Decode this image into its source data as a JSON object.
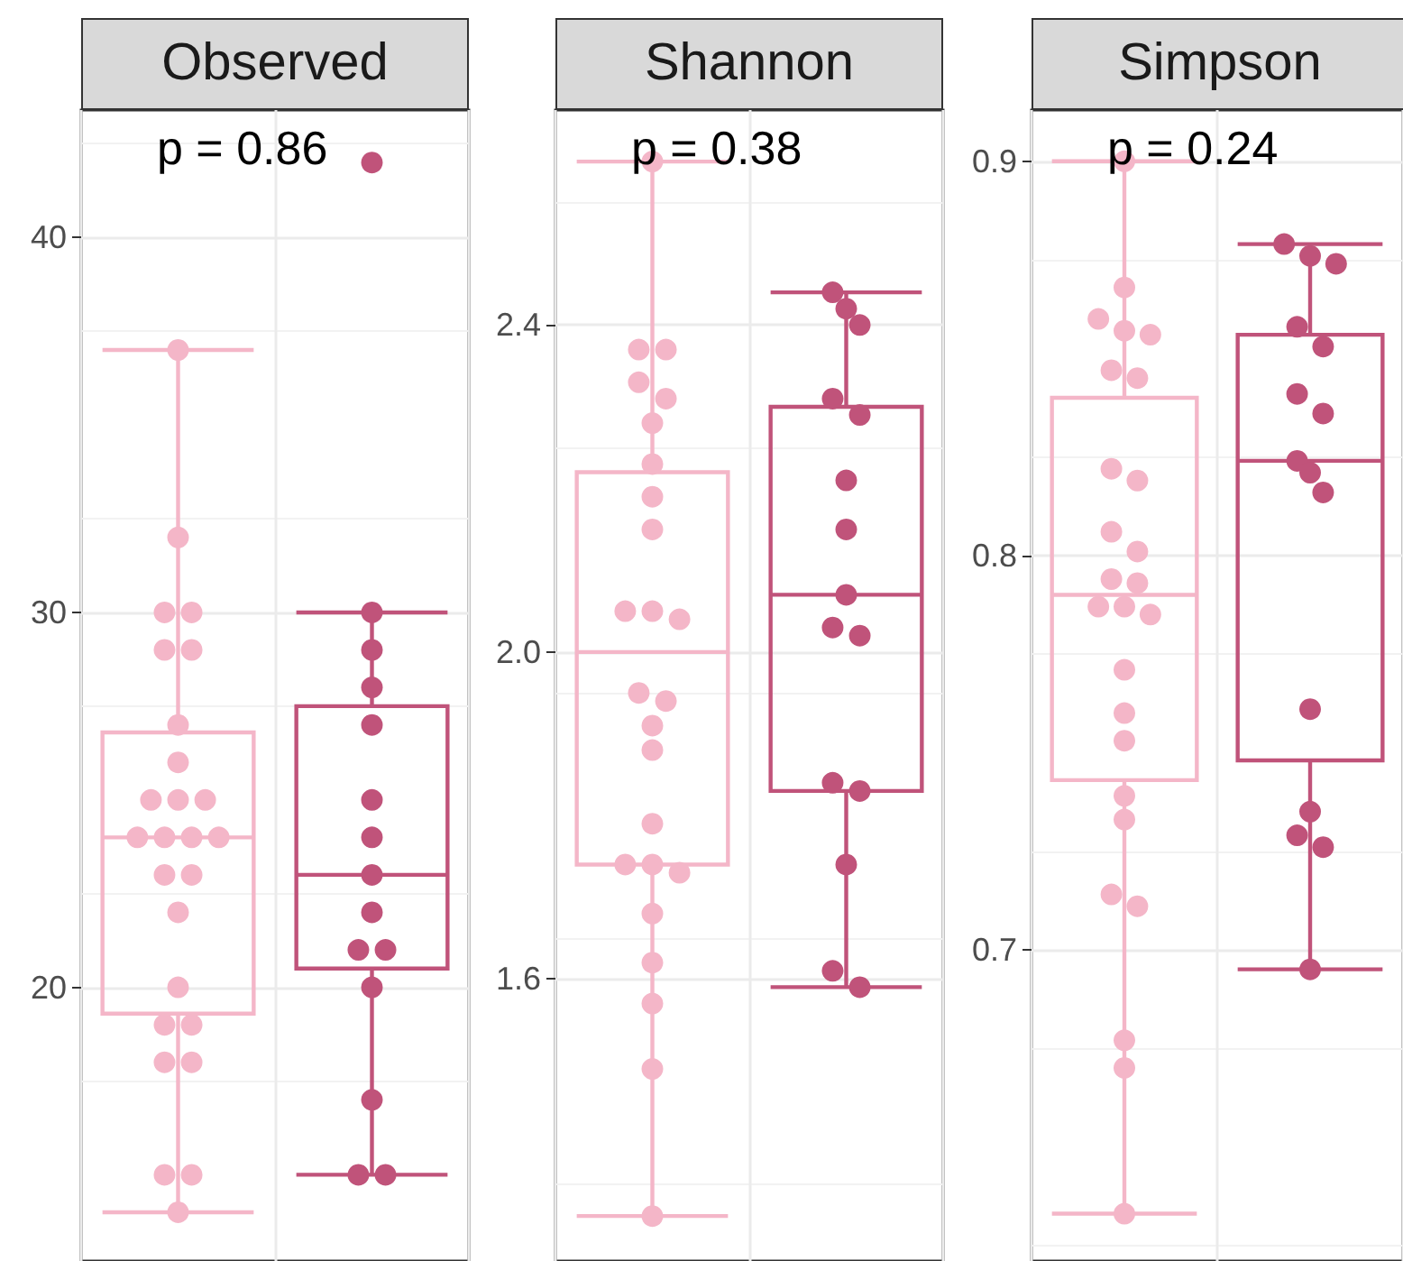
{
  "chart_data": [
    {
      "type": "box",
      "title": "Observed",
      "annotations": [
        "p = 0.86"
      ],
      "categories": [
        null,
        null
      ],
      "ylim": [
        12.7,
        43.4
      ],
      "yticks": [
        20,
        30,
        40
      ],
      "grid": true,
      "tick_labels": "y",
      "series": [
        {
          "type": "box",
          "colors": [
            "#f4b6c8",
            "#c0537a"
          ],
          "boxes": [
            {
              "low": 14,
              "q1": 19.3,
              "median": 24,
              "q3": 26.8,
              "high": 37
            },
            {
              "low": 15,
              "q1": 20.5,
              "median": 23,
              "q3": 27.5,
              "high": 30
            }
          ]
        },
        {
          "type": "scatter",
          "colors": [
            "#f4b6c8",
            "#c0537a"
          ],
          "values": [
            37,
            42
          ]
        },
        {
          "type": "scatter",
          "colors": [
            "#f4b6c8",
            "#c0537a"
          ],
          "values": [
            32,
            30
          ]
        },
        {
          "type": "scatter",
          "colors": [
            "#f4b6c8",
            "#c0537a"
          ],
          "values": [
            30,
            29
          ]
        },
        {
          "type": "scatter",
          "colors": [
            "#f4b6c8",
            "#c0537a"
          ],
          "values": [
            30,
            28
          ]
        },
        {
          "type": "scatter",
          "colors": [
            "#f4b6c8",
            "#c0537a"
          ],
          "values": [
            29,
            27
          ]
        },
        {
          "type": "scatter",
          "colors": [
            "#f4b6c8",
            "#c0537a"
          ],
          "values": [
            29,
            25
          ]
        },
        {
          "type": "scatter",
          "colors": [
            "#f4b6c8",
            "#c0537a"
          ],
          "values": [
            27,
            24
          ]
        },
        {
          "type": "scatter",
          "colors": [
            "#f4b6c8",
            "#c0537a"
          ],
          "values": [
            26,
            23
          ]
        },
        {
          "type": "scatter",
          "colors": [
            "#f4b6c8",
            "#c0537a"
          ],
          "values": [
            25,
            22
          ]
        },
        {
          "type": "scatter",
          "colors": [
            "#f4b6c8",
            "#c0537a"
          ],
          "values": [
            25,
            21
          ]
        },
        {
          "type": "scatter",
          "colors": [
            "#f4b6c8",
            "#c0537a"
          ],
          "values": [
            25,
            21
          ]
        },
        {
          "type": "scatter",
          "colors": [
            "#f4b6c8",
            "#c0537a"
          ],
          "values": [
            24,
            20
          ]
        },
        {
          "type": "scatter",
          "colors": [
            "#f4b6c8",
            "#c0537a"
          ],
          "values": [
            24,
            17
          ]
        },
        {
          "type": "scatter",
          "colors": [
            "#f4b6c8",
            "#c0537a"
          ],
          "values": [
            24,
            15
          ]
        },
        {
          "type": "scatter",
          "colors": [
            "#f4b6c8",
            "#c0537a"
          ],
          "values": [
            24,
            15
          ]
        },
        {
          "type": "scatter",
          "color": "#f4b6c8",
          "values": [
            23,
            null
          ]
        },
        {
          "type": "scatter",
          "color": "#f4b6c8",
          "values": [
            23,
            null
          ]
        },
        {
          "type": "scatter",
          "color": "#f4b6c8",
          "values": [
            22,
            null
          ]
        },
        {
          "type": "scatter",
          "color": "#f4b6c8",
          "values": [
            20,
            null
          ]
        },
        {
          "type": "scatter",
          "color": "#f4b6c8",
          "values": [
            19,
            null
          ]
        },
        {
          "type": "scatter",
          "color": "#f4b6c8",
          "values": [
            19,
            null
          ]
        },
        {
          "type": "scatter",
          "color": "#f4b6c8",
          "values": [
            18,
            null
          ]
        },
        {
          "type": "scatter",
          "color": "#f4b6c8",
          "values": [
            18,
            null
          ]
        },
        {
          "type": "scatter",
          "color": "#f4b6c8",
          "values": [
            15,
            null
          ]
        },
        {
          "type": "scatter",
          "color": "#f4b6c8",
          "values": [
            15,
            null
          ]
        },
        {
          "type": "scatter",
          "color": "#f4b6c8",
          "values": [
            14,
            null
          ]
        }
      ]
    },
    {
      "type": "box",
      "title": "Shannon",
      "annotations": [
        "p = 0.38"
      ],
      "categories": [
        null,
        null
      ],
      "ylim": [
        1.255,
        2.663
      ],
      "yticks": [
        1.6,
        {
          "value": 2,
          "label": "2.0"
        },
        2.4
      ],
      "grid": true,
      "tick_labels": "y",
      "series": [
        {
          "type": "box",
          "colors": [
            "#f4b6c8",
            "#c0537a"
          ],
          "boxes": [
            {
              "low": 1.31,
              "q1": 1.74,
              "median": 2.0,
              "q3": 2.22,
              "high": 2.6
            },
            {
              "low": 1.59,
              "q1": 1.83,
              "median": 2.07,
              "q3": 2.3,
              "high": 2.44
            }
          ]
        },
        {
          "type": "scatter",
          "colors": [
            "#f4b6c8",
            "#c0537a"
          ],
          "values": [
            2.6,
            2.44
          ]
        },
        {
          "type": "scatter",
          "colors": [
            "#f4b6c8",
            "#c0537a"
          ],
          "values": [
            2.37,
            2.42
          ]
        },
        {
          "type": "scatter",
          "colors": [
            "#f4b6c8",
            "#c0537a"
          ],
          "values": [
            2.37,
            2.4
          ]
        },
        {
          "type": "scatter",
          "colors": [
            "#f4b6c8",
            "#c0537a"
          ],
          "values": [
            2.33,
            2.31
          ]
        },
        {
          "type": "scatter",
          "colors": [
            "#f4b6c8",
            "#c0537a"
          ],
          "values": [
            2.31,
            2.29
          ]
        },
        {
          "type": "scatter",
          "colors": [
            "#f4b6c8",
            "#c0537a"
          ],
          "values": [
            2.28,
            2.21
          ]
        },
        {
          "type": "scatter",
          "colors": [
            "#f4b6c8",
            "#c0537a"
          ],
          "values": [
            2.23,
            2.15
          ]
        },
        {
          "type": "scatter",
          "colors": [
            "#f4b6c8",
            "#c0537a"
          ],
          "values": [
            2.19,
            2.07
          ]
        },
        {
          "type": "scatter",
          "colors": [
            "#f4b6c8",
            "#c0537a"
          ],
          "values": [
            2.15,
            2.03
          ]
        },
        {
          "type": "scatter",
          "colors": [
            "#f4b6c8",
            "#c0537a"
          ],
          "values": [
            2.05,
            2.02
          ]
        },
        {
          "type": "scatter",
          "colors": [
            "#f4b6c8",
            "#c0537a"
          ],
          "values": [
            2.05,
            1.84
          ]
        },
        {
          "type": "scatter",
          "colors": [
            "#f4b6c8",
            "#c0537a"
          ],
          "values": [
            2.04,
            1.83
          ]
        },
        {
          "type": "scatter",
          "colors": [
            "#f4b6c8",
            "#c0537a"
          ],
          "values": [
            1.95,
            1.74
          ]
        },
        {
          "type": "scatter",
          "colors": [
            "#f4b6c8",
            "#c0537a"
          ],
          "values": [
            1.94,
            1.61
          ]
        },
        {
          "type": "scatter",
          "colors": [
            "#f4b6c8",
            "#c0537a"
          ],
          "values": [
            1.91,
            1.59
          ]
        },
        {
          "type": "scatter",
          "color": "#f4b6c8",
          "values": [
            1.88,
            null
          ]
        },
        {
          "type": "scatter",
          "color": "#f4b6c8",
          "values": [
            1.79,
            null
          ]
        },
        {
          "type": "scatter",
          "color": "#f4b6c8",
          "values": [
            1.74,
            null
          ]
        },
        {
          "type": "scatter",
          "color": "#f4b6c8",
          "values": [
            1.74,
            null
          ]
        },
        {
          "type": "scatter",
          "color": "#f4b6c8",
          "values": [
            1.73,
            null
          ]
        },
        {
          "type": "scatter",
          "color": "#f4b6c8",
          "values": [
            1.68,
            null
          ]
        },
        {
          "type": "scatter",
          "color": "#f4b6c8",
          "values": [
            1.62,
            null
          ]
        },
        {
          "type": "scatter",
          "color": "#f4b6c8",
          "values": [
            1.57,
            null
          ]
        },
        {
          "type": "scatter",
          "color": "#f4b6c8",
          "values": [
            1.49,
            null
          ]
        },
        {
          "type": "scatter",
          "color": "#f4b6c8",
          "values": [
            1.31,
            null
          ]
        }
      ]
    },
    {
      "type": "box",
      "title": "Simpson",
      "annotations": [
        "p = 0.24"
      ],
      "categories": [
        null,
        null
      ],
      "ylim": [
        0.621,
        0.913
      ],
      "yticks": [
        0.7,
        0.8,
        0.9
      ],
      "grid": true,
      "tick_labels": "y",
      "series": [
        {
          "type": "box",
          "colors": [
            "#f4b6c8",
            "#c0537a"
          ],
          "boxes": [
            {
              "low": 0.633,
              "q1": 0.743,
              "median": 0.79,
              "q3": 0.84,
              "high": 0.9
            },
            {
              "low": 0.695,
              "q1": 0.748,
              "median": 0.824,
              "q3": 0.856,
              "high": 0.879
            }
          ]
        },
        {
          "type": "scatter",
          "colors": [
            "#f4b6c8",
            "#c0537a"
          ],
          "values": [
            0.9,
            0.879
          ]
        },
        {
          "type": "scatter",
          "colors": [
            "#f4b6c8",
            "#c0537a"
          ],
          "values": [
            0.868,
            0.876
          ]
        },
        {
          "type": "scatter",
          "colors": [
            "#f4b6c8",
            "#c0537a"
          ],
          "values": [
            0.86,
            0.874
          ]
        },
        {
          "type": "scatter",
          "colors": [
            "#f4b6c8",
            "#c0537a"
          ],
          "values": [
            0.857,
            0.858
          ]
        },
        {
          "type": "scatter",
          "colors": [
            "#f4b6c8",
            "#c0537a"
          ],
          "values": [
            0.856,
            0.853
          ]
        },
        {
          "type": "scatter",
          "colors": [
            "#f4b6c8",
            "#c0537a"
          ],
          "values": [
            0.847,
            0.841
          ]
        },
        {
          "type": "scatter",
          "colors": [
            "#f4b6c8",
            "#c0537a"
          ],
          "values": [
            0.845,
            0.836
          ]
        },
        {
          "type": "scatter",
          "colors": [
            "#f4b6c8",
            "#c0537a"
          ],
          "values": [
            0.822,
            0.824
          ]
        },
        {
          "type": "scatter",
          "colors": [
            "#f4b6c8",
            "#c0537a"
          ],
          "values": [
            0.819,
            0.821
          ]
        },
        {
          "type": "scatter",
          "colors": [
            "#f4b6c8",
            "#c0537a"
          ],
          "values": [
            0.806,
            0.816
          ]
        },
        {
          "type": "scatter",
          "colors": [
            "#f4b6c8",
            "#c0537a"
          ],
          "values": [
            0.801,
            0.761
          ]
        },
        {
          "type": "scatter",
          "colors": [
            "#f4b6c8",
            "#c0537a"
          ],
          "values": [
            0.794,
            0.735
          ]
        },
        {
          "type": "scatter",
          "colors": [
            "#f4b6c8",
            "#c0537a"
          ],
          "values": [
            0.793,
            0.729
          ]
        },
        {
          "type": "scatter",
          "colors": [
            "#f4b6c8",
            "#c0537a"
          ],
          "values": [
            0.787,
            0.726
          ]
        },
        {
          "type": "scatter",
          "colors": [
            "#f4b6c8",
            "#c0537a"
          ],
          "values": [
            0.787,
            0.695
          ]
        },
        {
          "type": "scatter",
          "color": "#f4b6c8",
          "values": [
            0.785,
            null
          ]
        },
        {
          "type": "scatter",
          "color": "#f4b6c8",
          "values": [
            0.771,
            null
          ]
        },
        {
          "type": "scatter",
          "color": "#f4b6c8",
          "values": [
            0.76,
            null
          ]
        },
        {
          "type": "scatter",
          "color": "#f4b6c8",
          "values": [
            0.753,
            null
          ]
        },
        {
          "type": "scatter",
          "color": "#f4b6c8",
          "values": [
            0.739,
            null
          ]
        },
        {
          "type": "scatter",
          "color": "#f4b6c8",
          "values": [
            0.733,
            null
          ]
        },
        {
          "type": "scatter",
          "color": "#f4b6c8",
          "values": [
            0.714,
            null
          ]
        },
        {
          "type": "scatter",
          "color": "#f4b6c8",
          "values": [
            0.711,
            null
          ]
        },
        {
          "type": "scatter",
          "color": "#f4b6c8",
          "values": [
            0.677,
            null
          ]
        },
        {
          "type": "scatter",
          "color": "#f4b6c8",
          "values": [
            0.67,
            null
          ]
        },
        {
          "type": "scatter",
          "color": "#f4b6c8",
          "values": [
            0.633,
            null
          ]
        }
      ]
    }
  ]
}
